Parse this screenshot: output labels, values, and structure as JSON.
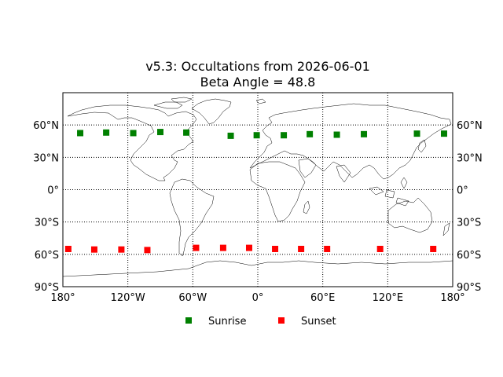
{
  "chart_data": {
    "type": "scatter",
    "title_line1": "v5.3: Occultations from 2026-06-01",
    "title_line2": "Beta Angle = 48.8",
    "xlim": [
      -180,
      180
    ],
    "ylim": [
      -90,
      90
    ],
    "grid": true,
    "grid_style": "dotted",
    "x_ticks": [
      -180,
      -120,
      -60,
      0,
      60,
      120,
      180
    ],
    "x_tick_labels": [
      "180°",
      "120°W",
      "60°W",
      "0°",
      "60°E",
      "120°E",
      "180°"
    ],
    "y_ticks": [
      -90,
      -60,
      -30,
      0,
      30,
      60
    ],
    "y_tick_labels": [
      "90°S",
      "60°S",
      "30°S",
      "0°",
      "30°N",
      "60°N"
    ],
    "legend_position": "bottom-center",
    "series": [
      {
        "name": "Sunrise",
        "color": "#008000",
        "marker": "square",
        "points": [
          {
            "lon": -164,
            "lat": 52.5
          },
          {
            "lon": -140,
            "lat": 53
          },
          {
            "lon": -115,
            "lat": 52.5
          },
          {
            "lon": -90,
            "lat": 53.5
          },
          {
            "lon": -66,
            "lat": 53
          },
          {
            "lon": -25,
            "lat": 50
          },
          {
            "lon": -1,
            "lat": 50.5
          },
          {
            "lon": 24,
            "lat": 50.5
          },
          {
            "lon": 48,
            "lat": 51.5
          },
          {
            "lon": 73,
            "lat": 51
          },
          {
            "lon": 98,
            "lat": 51.5
          },
          {
            "lon": 147,
            "lat": 52
          },
          {
            "lon": 172,
            "lat": 52
          }
        ]
      },
      {
        "name": "Sunset",
        "color": "#ff0000",
        "marker": "square",
        "points": [
          {
            "lon": -175,
            "lat": -55
          },
          {
            "lon": -151,
            "lat": -55.5
          },
          {
            "lon": -126,
            "lat": -55.5
          },
          {
            "lon": -102,
            "lat": -56
          },
          {
            "lon": -57,
            "lat": -54
          },
          {
            "lon": -32,
            "lat": -54
          },
          {
            "lon": -8,
            "lat": -54
          },
          {
            "lon": 16,
            "lat": -55
          },
          {
            "lon": 40,
            "lat": -55
          },
          {
            "lon": 64,
            "lat": -55
          },
          {
            "lon": 113,
            "lat": -55
          },
          {
            "lon": 162,
            "lat": -55
          }
        ]
      }
    ]
  }
}
